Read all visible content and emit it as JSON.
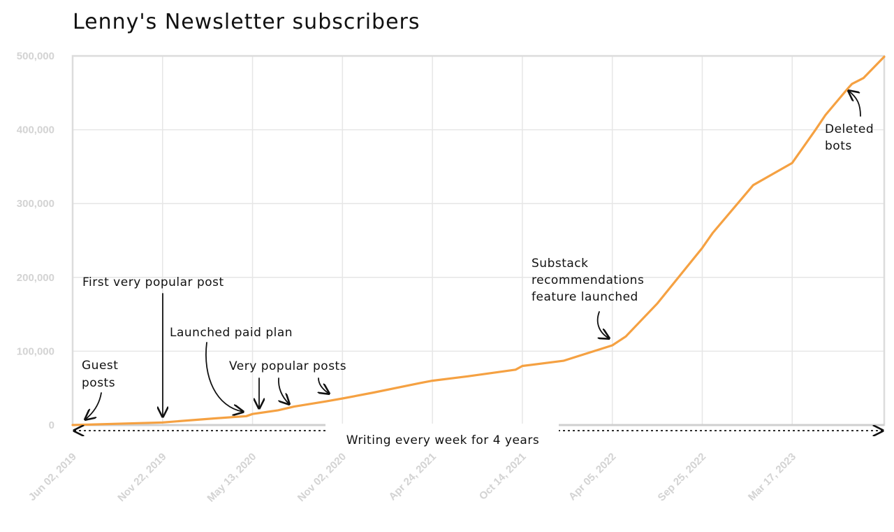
{
  "chart_data": {
    "type": "line",
    "title": "Lenny's Newsletter subscribers",
    "xlabel": "",
    "ylabel": "",
    "ylim": [
      0,
      500000
    ],
    "y_ticks": [
      "500,000",
      "400,000",
      "300,000",
      "200,000",
      "100,000",
      "0"
    ],
    "x_ticks": [
      "Jun 02, 2019",
      "Nov 22, 2019",
      "May 13, 2020",
      "Nov 02, 2020",
      "Apr 24, 2021",
      "Oct 14, 2021",
      "Apr 05, 2022",
      "Sep 25, 2022",
      "Mar 17, 2023"
    ],
    "series": [
      {
        "color": "#f5a142",
        "x": [
          "2019-06-02",
          "2019-11-22",
          "2020-03-01",
          "2020-05-01",
          "2020-05-13",
          "2020-07-01",
          "2020-08-01",
          "2020-10-01",
          "2020-11-02",
          "2021-01-01",
          "2021-04-01",
          "2021-04-24",
          "2021-07-01",
          "2021-10-01",
          "2021-10-14",
          "2022-01-01",
          "2022-04-05",
          "2022-05-01",
          "2022-07-01",
          "2022-09-25",
          "2022-10-15",
          "2023-01-01",
          "2023-03-17",
          "2023-05-01",
          "2023-05-20",
          "2023-07-01",
          "2023-07-10",
          "2023-08-01",
          "2023-09-10"
        ],
        "y": [
          0,
          3500,
          9000,
          12000,
          15000,
          20000,
          25000,
          32000,
          36000,
          44000,
          57000,
          60000,
          66000,
          75000,
          80000,
          87000,
          108000,
          120000,
          165000,
          240000,
          260000,
          325000,
          355000,
          400000,
          420000,
          455000,
          462000,
          470000,
          499000
        ]
      }
    ],
    "annotations": [
      {
        "text": [
          "Guest",
          "posts"
        ]
      },
      {
        "text": [
          "First very popular post"
        ]
      },
      {
        "text": [
          "Launched paid plan"
        ]
      },
      {
        "text": [
          "Very popular posts"
        ]
      },
      {
        "text": [
          "Substack",
          "recommendations",
          "feature launched"
        ]
      },
      {
        "text": [
          "Deleted",
          "bots"
        ]
      },
      {
        "text": [
          "Writing every week for 4 years"
        ]
      }
    ],
    "grid": true
  }
}
